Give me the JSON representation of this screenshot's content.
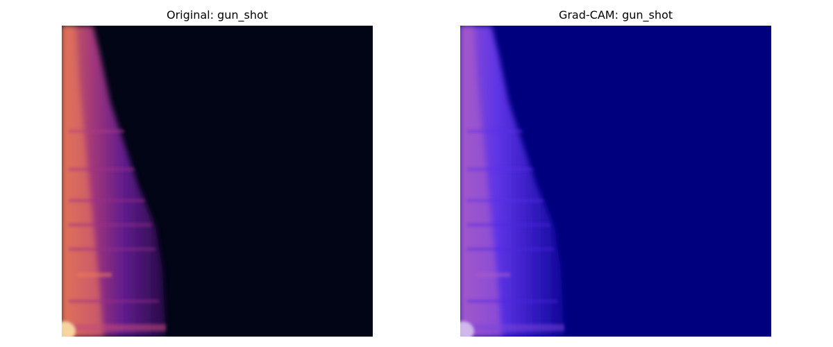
{
  "figure": {
    "panels": [
      {
        "id": "original",
        "title": "Original: gun_shot",
        "colormap": "magma",
        "background_color": "#020516"
      },
      {
        "id": "gradcam",
        "title": "Grad-CAM: gun_shot",
        "colormap": "jet-overlay",
        "background_color": "#00007f"
      }
    ]
  }
}
